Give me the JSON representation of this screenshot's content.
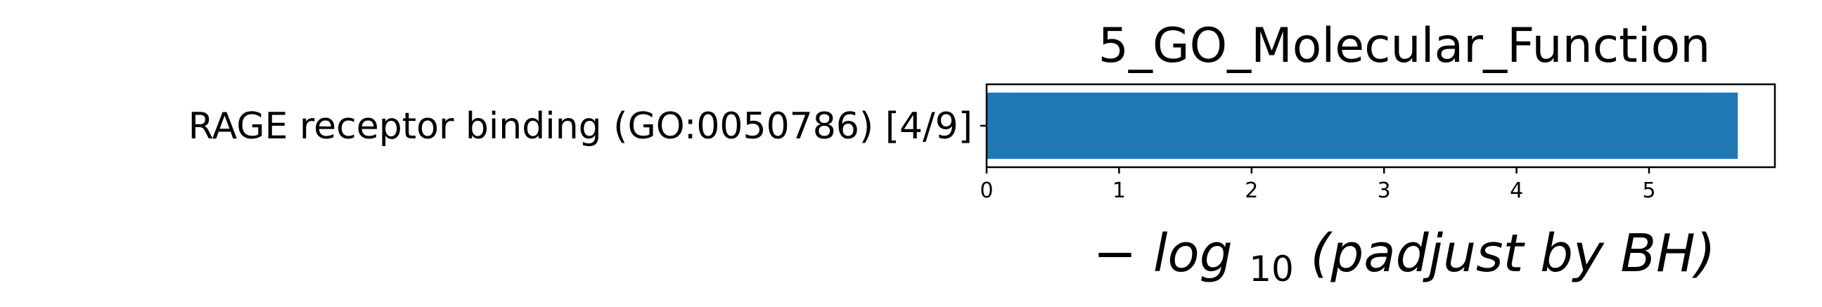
{
  "chart_data": {
    "type": "bar",
    "orientation": "horizontal",
    "title": "5_GO_Molecular_Function",
    "categories": [
      "RAGE receptor binding (GO:0050786) [4/9]"
    ],
    "values": [
      5.67
    ],
    "xlabel": {
      "prefix": "−",
      "log_text": "log",
      "subscript": "10",
      "rest": "(padjust by BH)"
    },
    "ylabel": "",
    "xlim": [
      0,
      5.95
    ],
    "x_ticks": [
      0,
      1,
      2,
      3,
      4,
      5
    ],
    "grid": false,
    "bar_color": "#1f77b4"
  }
}
